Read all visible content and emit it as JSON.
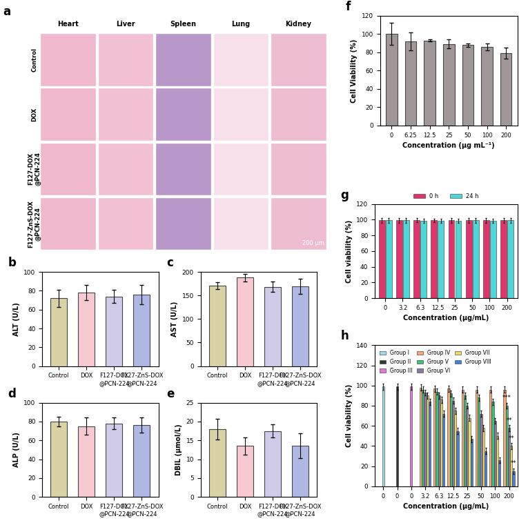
{
  "panel_a": {
    "label": "a",
    "columns": [
      "Heart",
      "Liver",
      "Spleen",
      "Lung",
      "Kidney"
    ],
    "rows": [
      "Control",
      "DOX",
      "F127-DOX\n@PCN-224",
      "F127-ZnS-DOX\n@PCN-224"
    ],
    "scale_bar": "200 μm"
  },
  "chart_data": [
    {
      "label": "b",
      "type": "bar",
      "ylabel": "ALT (U/L)",
      "categories": [
        "Control",
        "DOX",
        "F127-DOX\n@PCN-224",
        "F127-ZnS-DOX\n@PCN-224"
      ],
      "values": [
        72,
        78,
        74,
        76
      ],
      "errors": [
        9,
        8,
        7,
        10
      ],
      "colors": [
        "#d8d2a4",
        "#f7c9d1",
        "#cfcbe9",
        "#aeb8e2"
      ],
      "ylim": [
        0,
        100
      ],
      "yticks": [
        0,
        20,
        40,
        60,
        80,
        100
      ]
    },
    {
      "label": "c",
      "type": "bar",
      "ylabel": "AST (U/L)",
      "categories": [
        "Control",
        "DOX",
        "F127-DOX\n@PCN-224",
        "F127-ZnS-DOX\n@PCN-224"
      ],
      "values": [
        171,
        188,
        168,
        169
      ],
      "errors": [
        7,
        8,
        11,
        16
      ],
      "colors": [
        "#d8d2a4",
        "#f7c9d1",
        "#cfcbe9",
        "#aeb8e2"
      ],
      "ylim": [
        0,
        200
      ],
      "yticks": [
        0,
        50,
        100,
        150,
        200
      ]
    },
    {
      "label": "d",
      "type": "bar",
      "ylabel": "ALP (U/L)",
      "categories": [
        "Control",
        "DOX",
        "F127-DOX\n@PCN-224",
        "F127-ZnS-DOX\n@PCN-224"
      ],
      "values": [
        80,
        75,
        78,
        76
      ],
      "errors": [
        5,
        9,
        6,
        8
      ],
      "colors": [
        "#d8d2a4",
        "#f7c9d1",
        "#cfcbe9",
        "#aeb8e2"
      ],
      "ylim": [
        0,
        100
      ],
      "yticks": [
        0,
        20,
        40,
        60,
        80,
        100
      ]
    },
    {
      "label": "e",
      "type": "bar",
      "ylabel": "DBIL (μmol/L)",
      "categories": [
        "Control",
        "DOX",
        "F127-DOX\n@PCN-224",
        "F127-ZnS-DOX\n@PCN-224"
      ],
      "values": [
        18,
        13.5,
        17.5,
        13.5
      ],
      "errors": [
        2.8,
        2.3,
        1.8,
        3.3
      ],
      "colors": [
        "#d8d2a4",
        "#f7c9d1",
        "#cfcbe9",
        "#aeb8e2"
      ],
      "ylim": [
        0,
        25
      ],
      "yticks": [
        0,
        5,
        10,
        15,
        20,
        25
      ]
    },
    {
      "label": "f",
      "type": "bar",
      "ylabel": "Cell Viability (%)",
      "xlabel": "Concentration (μg mL⁻¹)",
      "categories": [
        "0",
        "6.25",
        "12.5",
        "25",
        "50",
        "100",
        "200"
      ],
      "values": [
        100,
        92,
        93,
        89,
        88,
        86,
        79
      ],
      "errors": [
        12,
        10,
        1,
        5,
        2,
        4,
        6
      ],
      "color": "#a09898",
      "ylim": [
        0,
        120
      ],
      "yticks": [
        0,
        20,
        40,
        60,
        80,
        100,
        120
      ]
    },
    {
      "label": "g",
      "type": "grouped_bar",
      "ylabel": "Cell viability (%)",
      "xlabel": "Concentration (μg/mL)",
      "categories": [
        "0",
        "3.2",
        "6.3",
        "12.5",
        "25",
        "50",
        "100",
        "200"
      ],
      "series": [
        {
          "name": "0 h",
          "color": "#e0356b",
          "values": [
            99,
            99,
            99.5,
            99,
            99,
            99,
            99,
            99
          ],
          "errors": [
            3,
            3,
            3,
            2,
            3,
            3,
            3,
            3
          ]
        },
        {
          "name": "24 h",
          "color": "#4fd6d6",
          "values": [
            99,
            99,
            98.5,
            98.5,
            98.5,
            99,
            98.5,
            99
          ],
          "errors": [
            3,
            3,
            3,
            3,
            3,
            3,
            3,
            3
          ]
        }
      ],
      "legend": "upper center",
      "ylim": [
        0,
        120
      ],
      "yticks": [
        0,
        20,
        40,
        60,
        80,
        100,
        120
      ]
    },
    {
      "label": "h",
      "type": "grouped_bar",
      "ylabel": "Cell viability (%)",
      "xlabel": "Concentration (μg/mL)",
      "categories": [
        "0",
        "0",
        "0",
        "3.2",
        "6.3",
        "12.5",
        "25",
        "50",
        "100",
        "200"
      ],
      "series": [
        {
          "name": "Group I",
          "color": "#9fd8e6",
          "values": [
            99,
            null,
            null,
            null,
            null,
            null,
            null,
            null,
            null,
            null
          ],
          "errors": [
            3,
            null,
            null,
            null,
            null,
            null,
            null,
            null,
            null,
            null
          ]
        },
        {
          "name": "Group II",
          "color": "#2f3b2f",
          "values": [
            null,
            99,
            null,
            null,
            null,
            null,
            null,
            null,
            null,
            null
          ],
          "errors": [
            null,
            3,
            null,
            null,
            null,
            null,
            null,
            null,
            null,
            null
          ]
        },
        {
          "name": "Group III",
          "color": "#e07ad0",
          "values": [
            null,
            null,
            99,
            null,
            null,
            null,
            null,
            null,
            null,
            null
          ],
          "errors": [
            null,
            null,
            3,
            null,
            null,
            null,
            null,
            null,
            null,
            null
          ]
        },
        {
          "name": "Group IV",
          "color": "#f2a77a",
          "values": [
            null,
            null,
            null,
            98,
            97,
            97,
            96,
            96,
            96,
            96
          ],
          "errors": [
            null,
            null,
            null,
            3,
            3,
            3,
            3,
            3,
            3,
            3
          ]
        },
        {
          "name": "Group V",
          "color": "#3fbf7a",
          "values": [
            null,
            null,
            null,
            96,
            94,
            92,
            90,
            88,
            84,
            80
          ],
          "errors": [
            null,
            null,
            null,
            3,
            3,
            3,
            3,
            3,
            3,
            3
          ]
        },
        {
          "name": "Group VI",
          "color": "#8a7a9a",
          "values": [
            null,
            null,
            null,
            93,
            90,
            85,
            80,
            72,
            65,
            58
          ],
          "errors": [
            null,
            null,
            null,
            3,
            3,
            3,
            3,
            3,
            3,
            3
          ]
        },
        {
          "name": "Group VII",
          "color": "#e8d86a",
          "values": [
            null,
            null,
            null,
            90,
            86,
            75,
            68,
            58,
            50,
            40
          ],
          "errors": [
            null,
            null,
            null,
            3,
            3,
            3,
            3,
            3,
            3,
            3
          ]
        },
        {
          "name": "Group VIII",
          "color": "#4a7fd6",
          "values": [
            null,
            null,
            null,
            84,
            72,
            55,
            47,
            35,
            26,
            15
          ],
          "errors": [
            null,
            null,
            null,
            3,
            3,
            3,
            3,
            3,
            3,
            3
          ]
        }
      ],
      "annotations": [
        {
          "text": "***",
          "series": "Group V"
        },
        {
          "text": "**",
          "series": "Group VI"
        },
        {
          "text": "**",
          "series": "Group VII"
        },
        {
          "text": "**",
          "series": "Group VIII"
        }
      ],
      "legend": "upper left",
      "ylim": [
        0,
        140
      ],
      "yticks": [
        0,
        20,
        40,
        60,
        80,
        100,
        120,
        140
      ]
    }
  ]
}
